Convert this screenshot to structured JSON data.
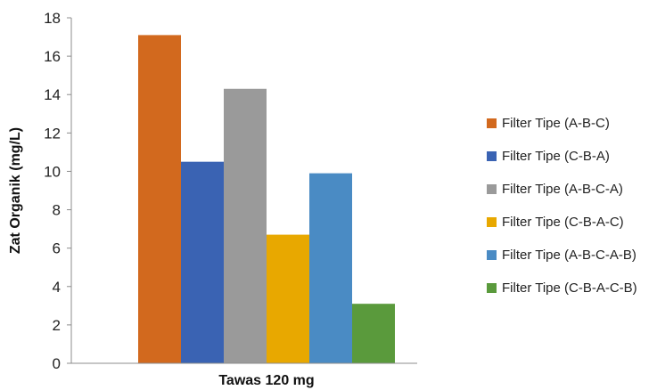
{
  "chart_data": {
    "type": "bar",
    "categories": [
      "Tawas 120 mg"
    ],
    "xlabel": "Tawas 120 mg",
    "ylabel": "Zat Organik (mg/L)",
    "ylim": [
      0,
      18
    ],
    "yticks": [
      0,
      2,
      4,
      6,
      8,
      10,
      12,
      14,
      16,
      18
    ],
    "grid": false,
    "legend_position": "right",
    "series": [
      {
        "name": "Filter Tipe (A-B-C)",
        "values": [
          17.1
        ],
        "color": "#D2691E"
      },
      {
        "name": "Filter Tipe (C-B-A)",
        "values": [
          10.5
        ],
        "color": "#3A63B3"
      },
      {
        "name": "Filter Tipe (A-B-C-A)",
        "values": [
          14.3
        ],
        "color": "#9A9A9A"
      },
      {
        "name": "Filter Tipe (C-B-A-C)",
        "values": [
          6.7
        ],
        "color": "#E8A800"
      },
      {
        "name": "Filter Tipe (A-B-C-A-B)",
        "values": [
          9.9
        ],
        "color": "#4A8BC4"
      },
      {
        "name": "Filter Tipe (C-B-A-C-B)",
        "values": [
          3.1
        ],
        "color": "#5A9A3C"
      }
    ]
  }
}
